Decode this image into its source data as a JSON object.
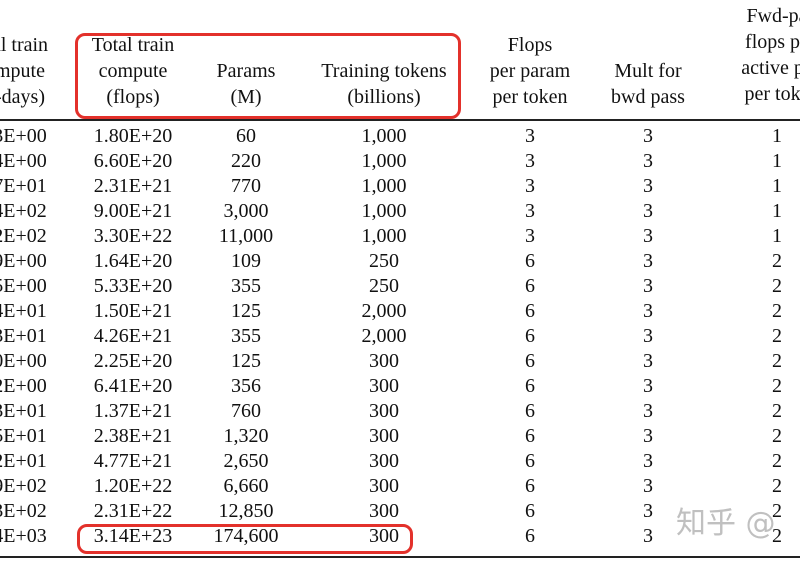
{
  "headers": [
    {
      "name": "col-train-compute-days",
      "lines": [
        "al train",
        "mpute",
        "-days)"
      ]
    },
    {
      "name": "col-total-train-compute",
      "lines": [
        "Total train",
        "compute",
        "(flops)"
      ]
    },
    {
      "name": "col-params",
      "lines": [
        "",
        "Params",
        "(M)"
      ]
    },
    {
      "name": "col-training-tokens",
      "lines": [
        "",
        "Training tokens",
        "(billions)"
      ]
    },
    {
      "name": "col-flops-per-param",
      "lines": [
        "Flops",
        "per param",
        "per token"
      ]
    },
    {
      "name": "col-mult-bwd",
      "lines": [
        "",
        "Mult for",
        "bwd pass"
      ]
    },
    {
      "name": "col-fwd-pass-flops",
      "lines": [
        "Fwd-pa",
        "flops pe",
        "active pa",
        "per toke"
      ]
    }
  ],
  "rows": [
    [
      "3E+00",
      "1.80E+20",
      "60",
      "1,000",
      "3",
      "3",
      "1"
    ],
    [
      "4E+00",
      "6.60E+20",
      "220",
      "1,000",
      "3",
      "3",
      "1"
    ],
    [
      "7E+01",
      "2.31E+21",
      "770",
      "1,000",
      "3",
      "3",
      "1"
    ],
    [
      "4E+02",
      "9.00E+21",
      "3,000",
      "1,000",
      "3",
      "3",
      "1"
    ],
    [
      "2E+02",
      "3.30E+22",
      "11,000",
      "1,000",
      "3",
      "3",
      "1"
    ],
    [
      "9E+00",
      "1.64E+20",
      "109",
      "250",
      "6",
      "3",
      "2"
    ],
    [
      "5E+00",
      "5.33E+20",
      "355",
      "250",
      "6",
      "3",
      "2"
    ],
    [
      "4E+01",
      "1.50E+21",
      "125",
      "2,000",
      "6",
      "3",
      "2"
    ],
    [
      "3E+01",
      "4.26E+21",
      "355",
      "2,000",
      "6",
      "3",
      "2"
    ],
    [
      "0E+00",
      "2.25E+20",
      "125",
      "300",
      "6",
      "3",
      "2"
    ],
    [
      "2E+00",
      "6.41E+20",
      "356",
      "300",
      "6",
      "3",
      "2"
    ],
    [
      "3E+01",
      "1.37E+21",
      "760",
      "300",
      "6",
      "3",
      "2"
    ],
    [
      "5E+01",
      "2.38E+21",
      "1,320",
      "300",
      "6",
      "3",
      "2"
    ],
    [
      "2E+01",
      "4.77E+21",
      "2,650",
      "300",
      "6",
      "3",
      "2"
    ],
    [
      "9E+02",
      "1.20E+22",
      "6,660",
      "300",
      "6",
      "3",
      "2"
    ],
    [
      "3E+02",
      "2.31E+22",
      "12,850",
      "300",
      "6",
      "3",
      "2"
    ],
    [
      "4E+03",
      "3.14E+23",
      "174,600",
      "300",
      "6",
      "3",
      "2"
    ]
  ],
  "watermark": "知乎 @",
  "highlight_color": "#e3312b"
}
